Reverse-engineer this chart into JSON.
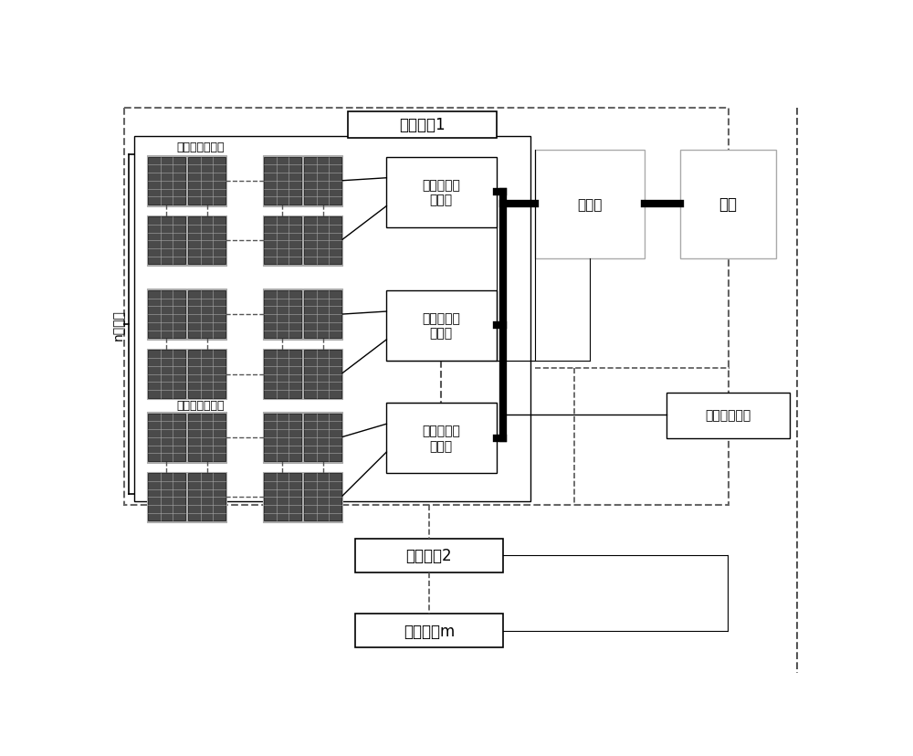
{
  "title": "发电单元1",
  "label_pv_string_top": "光伏电池板组串",
  "label_pv_string_bottom": "光伏电池板组串",
  "label_mppt1": "最大功率寻\n优装置",
  "label_mppt2": "最大功率寻\n优装置",
  "label_mppt3": "最大功率寻\n优装置",
  "label_inverter": "逆变器",
  "label_grid": "电网",
  "label_data": "数据采集装置",
  "label_unit2": "发电单元2",
  "label_unitm": "发电单元m",
  "label_n_strings": "n个组串",
  "bg_color": "#ffffff",
  "panel_fill": "#4a4a4a",
  "panel_edge": "#888888",
  "panel_frame": "#aaaaaa",
  "dashed_color": "#666666",
  "thick_line_color": "#000000",
  "thin_line_color": "#000000",
  "box_edge_color": "#000000",
  "light_box_edge": "#aaaaaa"
}
